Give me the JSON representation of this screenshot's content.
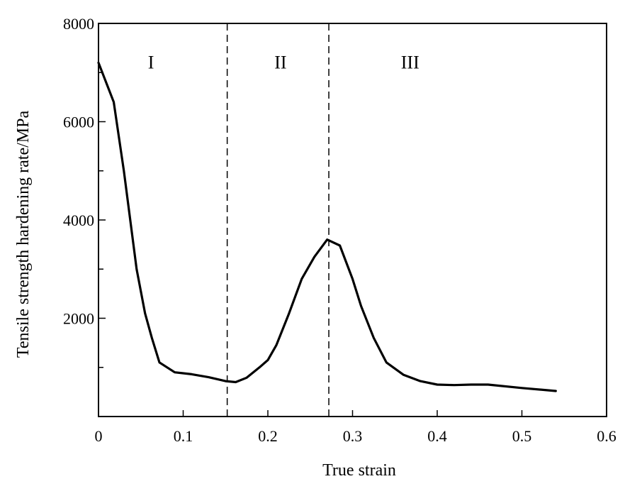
{
  "chart_data": {
    "type": "line",
    "xlabel": "True strain",
    "ylabel": "Tensile strength hardening rate/MPa",
    "xlim": [
      0,
      0.6
    ],
    "ylim": [
      0,
      8000
    ],
    "x_ticks": [
      0,
      0.1,
      0.2,
      0.3,
      0.4,
      0.5,
      0.6
    ],
    "x_tick_labels": [
      "0",
      "0.1",
      "0.2",
      "0.3",
      "0.4",
      "0.5",
      "0.6"
    ],
    "y_major_ticks": [
      0,
      2000,
      4000,
      6000,
      8000
    ],
    "y_tick_labels": [
      "",
      "2000",
      "4000",
      "6000",
      "8000"
    ],
    "y_minor_ticks": [
      1000,
      3000,
      5000,
      7000
    ],
    "grid": false,
    "line_color": "#000000",
    "series": [
      {
        "x": [
          0.0,
          0.018,
          0.03,
          0.045,
          0.055,
          0.063,
          0.072,
          0.09,
          0.11,
          0.13,
          0.15,
          0.162,
          0.175,
          0.19,
          0.2,
          0.21,
          0.225,
          0.24,
          0.255,
          0.27,
          0.285,
          0.3,
          0.31,
          0.325,
          0.34,
          0.36,
          0.38,
          0.4,
          0.42,
          0.44,
          0.46,
          0.5,
          0.54
        ],
        "y": [
          7200,
          6400,
          5000,
          3000,
          2100,
          1600,
          1100,
          900,
          860,
          800,
          720,
          700,
          790,
          1000,
          1150,
          1450,
          2100,
          2800,
          3250,
          3600,
          3480,
          2800,
          2250,
          1600,
          1100,
          850,
          720,
          650,
          640,
          650,
          650,
          580,
          520
        ]
      }
    ],
    "vlines": [
      {
        "x": 0.152,
        "style": "dashed"
      },
      {
        "x": 0.272,
        "style": "dashed"
      }
    ],
    "annotations": [
      {
        "text": "I",
        "x": 0.062,
        "y": 7200
      },
      {
        "text": "II",
        "x": 0.215,
        "y": 7200
      },
      {
        "text": "III",
        "x": 0.368,
        "y": 7200
      }
    ]
  }
}
